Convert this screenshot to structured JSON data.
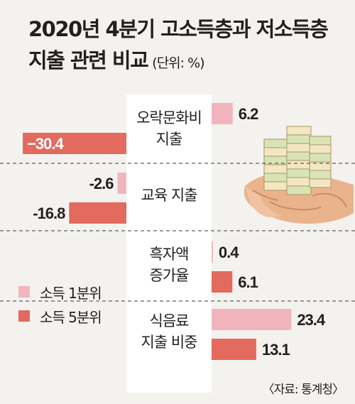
{
  "title": {
    "line1": "2020년 4분기 고소득층과 저소득층",
    "line2": "지출 관련 비교",
    "unit": "(단위: %)"
  },
  "source": "〈자료: 통계청〉",
  "legend": [
    {
      "label": "소득 1분위",
      "color": "#f2b5bd"
    },
    {
      "label": "소득 5분위",
      "color": "#e26a5e"
    }
  ],
  "colors": {
    "q1": "#f2b5bd",
    "q5": "#e26a5e",
    "center_panel": "#ffffff",
    "background": "#f3f2ee"
  },
  "illustration": "hand-holding-money-stacks-icon",
  "chart_data": {
    "type": "bar",
    "orientation": "horizontal-diverging",
    "categories": [
      {
        "lines": [
          "오락문화비",
          "지출"
        ]
      },
      {
        "lines": [
          "교육 지출"
        ]
      },
      {
        "lines": [
          "흑자액",
          "증가율"
        ]
      },
      {
        "lines": [
          "식음료",
          "지출 비중"
        ]
      }
    ],
    "series": [
      {
        "name": "소득 1분위",
        "values": [
          6.2,
          -2.6,
          0.4,
          23.4
        ],
        "labels": [
          "6.2",
          "-2.6",
          "0.4",
          "23.4"
        ]
      },
      {
        "name": "소득 5분위",
        "values": [
          -30.4,
          -16.8,
          6.1,
          13.1
        ],
        "labels": [
          "−30.4",
          "-16.8",
          "6.1",
          "13.1"
        ]
      }
    ],
    "xlabel": "",
    "ylabel": "",
    "grid": false
  }
}
